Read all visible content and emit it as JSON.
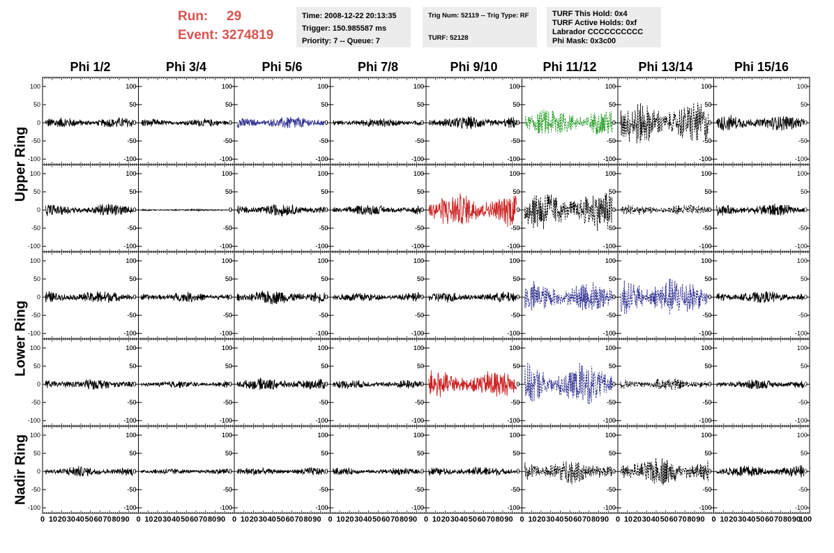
{
  "header": {
    "run_label": "Run:",
    "run_value": "29",
    "event_label": "Event:",
    "event_value": "3274819",
    "time": "Time: 2008-12-22 20:13:35",
    "trigger": "Trigger: 150.985587 ms",
    "priority": "Priority: 7 -- Queue: 7",
    "trig_num": "Trig Num: 52119 -- Trig Type: RF",
    "turf": "TURF: 52128",
    "turf_this_hold": "TURF This Hold: 0x4",
    "turf_active_holds": "TURF Active Holds: 0xf",
    "labrador": "Labrador CCCCCCCCCC",
    "phi_mask": "Phi Mask: 0x3c00"
  },
  "chart_data": {
    "type": "line",
    "columns": [
      "Phi 1/2",
      "Phi 3/4",
      "Phi 5/6",
      "Phi 7/8",
      "Phi 9/10",
      "Phi 11/12",
      "Phi 13/14",
      "Phi 15/16"
    ],
    "ring_labels": [
      "Upper Ring",
      "Lower Ring",
      "Nadir Ring"
    ],
    "ylim": [
      -115,
      125
    ],
    "yticks": [
      100,
      50,
      0,
      -50,
      -100
    ],
    "xlim": [
      0,
      100
    ],
    "xtick_labels": [
      "0",
      "10",
      "20",
      "30",
      "40",
      "50",
      "60",
      "70",
      "80",
      "90",
      "100"
    ],
    "grid": false,
    "colors": {
      "black": "#000000",
      "blue": "#2b2b8f",
      "green": "#1f9a1f",
      "red": "#cc2222",
      "header_red": "#d9534f"
    },
    "panels": [
      [
        {
          "amp": 12,
          "color": "black",
          "dash": false
        },
        {
          "amp": 9,
          "color": "black",
          "dash": false
        },
        {
          "amp": 14,
          "color": "blue",
          "dash": false
        },
        {
          "amp": 10,
          "color": "black",
          "dash": false
        },
        {
          "amp": 15,
          "color": "black",
          "dash": false
        },
        {
          "amp": 32,
          "color": "green",
          "dash": true
        },
        {
          "amp": 48,
          "color": "black",
          "dash": true
        },
        {
          "amp": 18,
          "color": "black",
          "dash": false
        }
      ],
      [
        {
          "amp": 14,
          "color": "black",
          "dash": false
        },
        {
          "amp": 2,
          "color": "black",
          "dash": false
        },
        {
          "amp": 14,
          "color": "black",
          "dash": false
        },
        {
          "amp": 12,
          "color": "black",
          "dash": false
        },
        {
          "amp": 38,
          "color": "red",
          "dash": false
        },
        {
          "amp": 45,
          "color": "black",
          "dash": true
        },
        {
          "amp": 12,
          "color": "black",
          "dash": true
        },
        {
          "amp": 14,
          "color": "black",
          "dash": false
        }
      ],
      [
        {
          "amp": 14,
          "color": "black",
          "dash": false
        },
        {
          "amp": 11,
          "color": "black",
          "dash": false
        },
        {
          "amp": 16,
          "color": "black",
          "dash": false
        },
        {
          "amp": 11,
          "color": "black",
          "dash": false
        },
        {
          "amp": 12,
          "color": "black",
          "dash": false
        },
        {
          "amp": 35,
          "color": "blue",
          "dash": true
        },
        {
          "amp": 45,
          "color": "blue",
          "dash": true
        },
        {
          "amp": 14,
          "color": "black",
          "dash": false
        }
      ],
      [
        {
          "amp": 13,
          "color": "black",
          "dash": false
        },
        {
          "amp": 8,
          "color": "black",
          "dash": false
        },
        {
          "amp": 14,
          "color": "black",
          "dash": false
        },
        {
          "amp": 10,
          "color": "black",
          "dash": false
        },
        {
          "amp": 32,
          "color": "red",
          "dash": false
        },
        {
          "amp": 48,
          "color": "blue",
          "dash": true
        },
        {
          "amp": 14,
          "color": "black",
          "dash": true
        },
        {
          "amp": 11,
          "color": "black",
          "dash": false
        }
      ],
      [
        {
          "amp": 12,
          "color": "black",
          "dash": false
        },
        {
          "amp": 7,
          "color": "black",
          "dash": false
        },
        {
          "amp": 9,
          "color": "black",
          "dash": false
        },
        {
          "amp": 8,
          "color": "black",
          "dash": false
        },
        {
          "amp": 11,
          "color": "black",
          "dash": false
        },
        {
          "amp": 28,
          "color": "black",
          "dash": true
        },
        {
          "amp": 32,
          "color": "black",
          "dash": true
        },
        {
          "amp": 14,
          "color": "black",
          "dash": false
        }
      ]
    ]
  }
}
